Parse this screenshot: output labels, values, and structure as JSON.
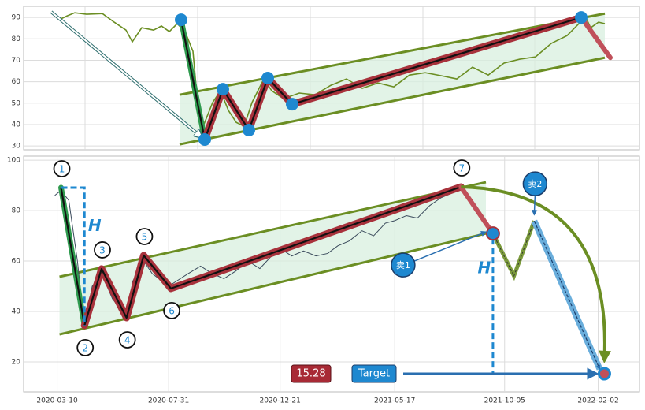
{
  "chart_data": [
    {
      "type": "line",
      "xlim": [
        0,
        782
      ],
      "xticks": [
        78,
        221,
        364,
        507,
        649
      ],
      "ylim": [
        28.2,
        95.2
      ],
      "yticks": [
        30,
        40,
        50,
        60,
        70,
        80,
        90
      ],
      "grid": true,
      "price": {
        "color": "#6b8e23",
        "x": [
          35,
          45,
          55,
          65,
          80,
          100,
          115,
          130,
          138,
          150,
          165,
          175,
          185,
          195,
          205,
          215,
          220,
          226,
          232,
          240,
          250,
          260,
          270,
          280,
          290,
          305,
          315,
          330,
          350,
          370,
          390,
          410,
          430,
          450,
          470,
          490,
          510,
          530,
          550,
          570,
          590,
          610,
          630,
          650,
          670,
          690,
          705,
          712,
          720,
          730,
          738
        ],
        "values": [
          92.6,
          88.9,
          90.7,
          92.2,
          91.5,
          91.8,
          87.8,
          84.1,
          78.6,
          85.2,
          84.1,
          86.0,
          83.4,
          87.1,
          83.4,
          74.2,
          53.9,
          37.4,
          42.9,
          50.3,
          55.8,
          46.6,
          41.0,
          39.2,
          50.3,
          61.3,
          55.8,
          52.1,
          54.7,
          53.9,
          58.3,
          61.3,
          56.9,
          59.4,
          57.6,
          63.1,
          64.2,
          62.8,
          61.3,
          66.8,
          63.1,
          68.7,
          70.5,
          71.6,
          77.9,
          81.5,
          87.1,
          91.5,
          85.2,
          87.8,
          87.1
        ]
      },
      "pattern": {
        "x": [
          200,
          230,
          253,
          286,
          310,
          341,
          708,
          745
        ],
        "values": [
          88.9,
          33.0,
          56.5,
          37.4,
          61.7,
          49.5,
          90.0,
          71.2
        ]
      },
      "channel": {
        "x": [
          198,
          738
        ],
        "upper": [
          53.9,
          91.8
        ],
        "lower": [
          30.7,
          71.2
        ],
        "color": "#6b8e23"
      }
    },
    {
      "type": "line",
      "xlim": [
        "2020-01-27",
        "2022-03-27"
      ],
      "xticks": [
        "2020-03-10",
        "2020-07-31",
        "2020-12-21",
        "2021-05-17",
        "2021-10-05",
        "2022-02-02"
      ],
      "ylim": [
        8.1,
        101.6
      ],
      "yticks": [
        20,
        40,
        60,
        80,
        100
      ],
      "grid": true,
      "price": {
        "color": "#3a4a5c",
        "x": [
          "2020-03-07",
          "2020-03-15",
          "2020-03-25",
          "2020-04-05",
          "2020-04-14",
          "2020-04-24",
          "2020-05-06",
          "2020-05-20",
          "2020-06-07",
          "2020-06-15",
          "2020-06-29",
          "2020-07-10",
          "2020-07-31",
          "2020-08-10",
          "2020-08-25",
          "2020-09-10",
          "2020-09-25",
          "2020-10-10",
          "2020-10-25",
          "2020-11-10",
          "2020-11-25",
          "2020-12-10",
          "2020-12-21",
          "2021-01-05",
          "2021-01-20",
          "2021-02-05",
          "2021-02-20",
          "2021-03-05",
          "2021-03-20",
          "2021-04-05",
          "2021-04-20",
          "2021-05-05",
          "2021-05-17",
          "2021-06-01",
          "2021-06-15",
          "2021-07-01",
          "2021-07-15",
          "2021-07-30",
          "2021-08-10"
        ],
        "values": [
          86,
          88,
          84,
          60,
          34,
          50,
          55,
          45,
          38,
          52,
          60,
          55,
          50,
          52,
          55,
          58,
          55,
          53,
          56,
          60,
          57,
          62,
          65,
          62,
          64,
          62,
          63,
          66,
          68,
          72,
          70,
          75,
          76,
          78,
          77,
          82,
          85,
          87,
          90
        ]
      },
      "pattern": {
        "x": [
          "2020-03-15",
          "2020-04-14",
          "2020-05-06",
          "2020-06-07",
          "2020-06-29",
          "2020-08-03",
          "2021-08-10"
        ],
        "values": [
          89.1,
          34.4,
          56.9,
          37.5,
          62.2,
          49.1,
          89.4
        ],
        "labels": [
          "1",
          "2",
          "3",
          "4",
          "5",
          "6",
          "7"
        ]
      },
      "channel": {
        "x": [
          "2020-03-13",
          "2021-09-11"
        ],
        "upper": [
          53.75,
          91.25
        ],
        "lower": [
          30.9,
          70.9
        ],
        "color": "#6b8e23"
      },
      "projection": {
        "x": [
          "2021-09-20",
          "2021-10-17",
          "2021-11-12",
          "2022-02-10"
        ],
        "values": [
          70.9,
          54.1,
          75.9,
          15.28
        ]
      },
      "annotations": {
        "height": [
          "H",
          "H"
        ],
        "sell": [
          "卖1",
          "卖2"
        ],
        "target": "Target"
      }
    }
  ]
}
